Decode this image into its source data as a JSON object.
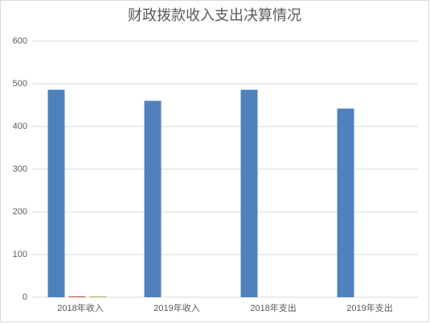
{
  "chart_data": {
    "type": "bar",
    "title": "财政拨款收入支出决算情况",
    "categories": [
      "2018年收入",
      "2019年收入",
      "2018年支出",
      "2019年支出"
    ],
    "series": [
      {
        "color": "#4f81bd",
        "values": [
          486,
          460,
          486,
          442
        ]
      },
      {
        "color": "#c0504d",
        "values": [
          2,
          0,
          0,
          0
        ]
      },
      {
        "color": "#9bbb59",
        "values": [
          2,
          0,
          0,
          0
        ]
      }
    ],
    "ylim": [
      0,
      600
    ],
    "yticks": [
      0,
      100,
      200,
      300,
      400,
      500,
      600
    ],
    "grid": true
  }
}
